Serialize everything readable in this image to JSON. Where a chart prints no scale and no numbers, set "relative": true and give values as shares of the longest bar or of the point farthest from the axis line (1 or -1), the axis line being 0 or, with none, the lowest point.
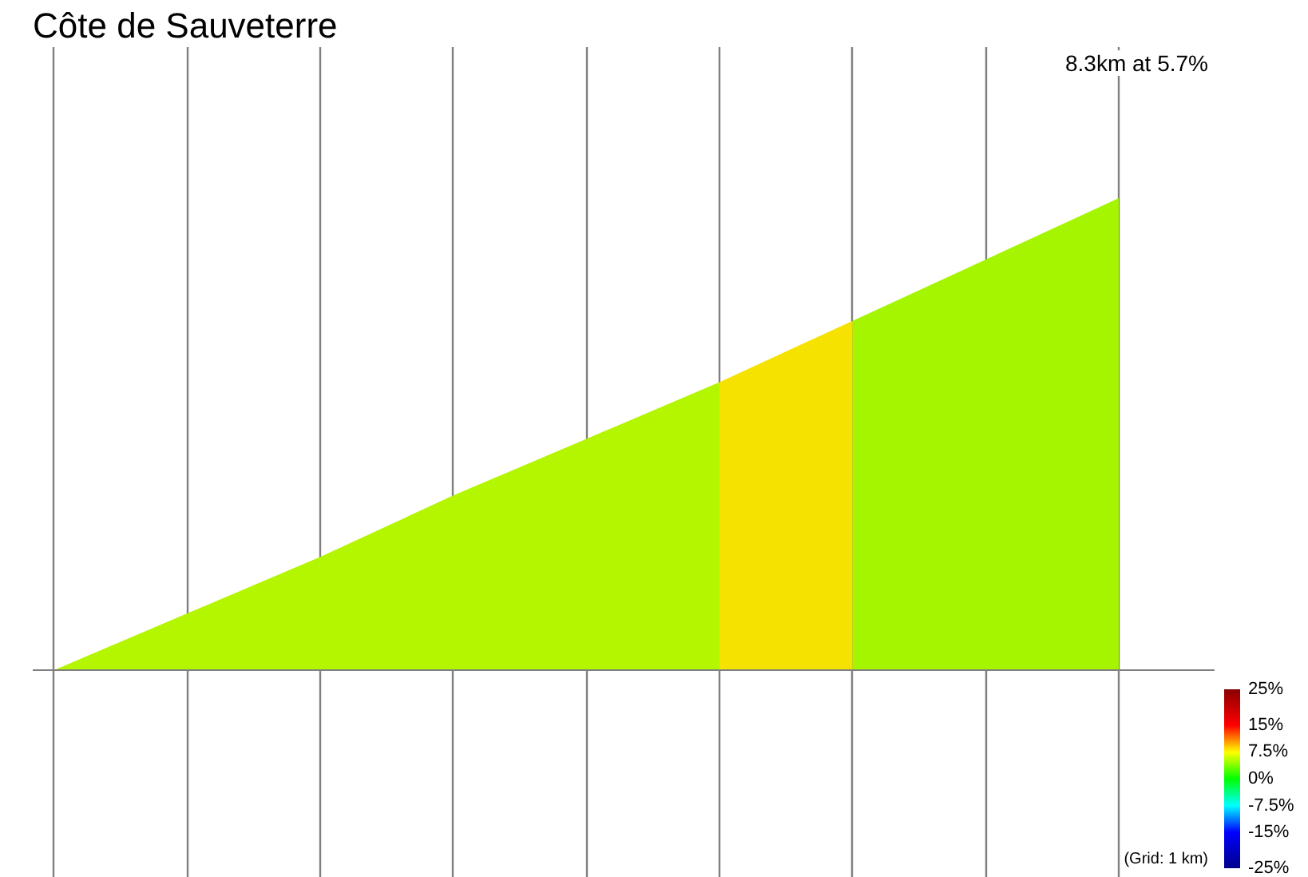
{
  "chart_data": {
    "type": "area",
    "title": "Côte de Sauveterre",
    "annotations": [
      "8.3km at 5.7%",
      "(Grid: 1 km)"
    ],
    "relative": true,
    "categories": [
      null,
      null,
      null,
      null,
      null,
      null,
      null,
      null,
      null
    ],
    "series": [
      {
        "color": "#b4f500",
        "values": [
          0,
          0.12,
          0.24,
          0.37,
          0.49,
          0.61,
          null,
          null,
          null
        ]
      },
      {
        "color": "#f6e200",
        "values": [
          null,
          null,
          null,
          null,
          null,
          0.61,
          0.74,
          null,
          null
        ]
      },
      {
        "color": "#a6f500",
        "values": [
          null,
          null,
          null,
          null,
          null,
          null,
          0.74,
          0.87,
          1
        ]
      }
    ],
    "grid": "x",
    "clim": [
      -25,
      25
    ],
    "cticks": [
      {
        "value": 25,
        "label": "25%"
      },
      {
        "value": 15,
        "label": "15%"
      },
      {
        "value": 7.5,
        "label": "7.5%"
      },
      {
        "value": 0,
        "label": "0%"
      },
      {
        "value": -7.5,
        "label": "-7.5%"
      },
      {
        "value": -15,
        "label": "-15%"
      },
      {
        "value": -25,
        "label": "-25%"
      }
    ]
  }
}
